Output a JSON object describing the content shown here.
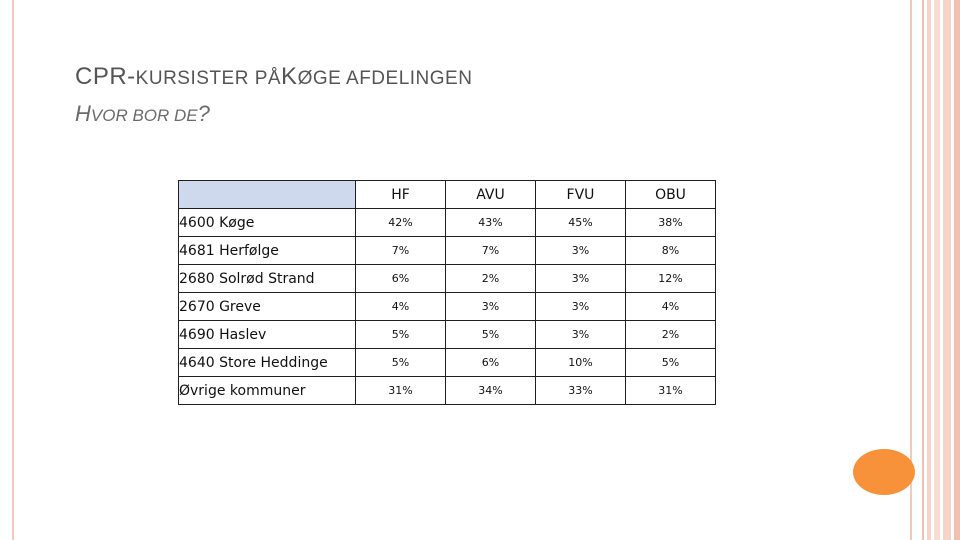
{
  "slide": {
    "title_prefix": "CPR-",
    "title_k": "KURSISTER PÅ",
    "title_koge_k": "K",
    "title_rest": "ØGE AFDELINGEN",
    "subtitle_h": "H",
    "subtitle_rest": "VOR BOR DE",
    "subtitle_q": "?"
  },
  "table": {
    "columns": [
      "HF",
      "AVU",
      "FVU",
      "OBU"
    ],
    "rows": [
      {
        "label": "4600 Køge",
        "values": [
          "42%",
          "43%",
          "45%",
          "38%"
        ]
      },
      {
        "label": "4681 Herfølge",
        "values": [
          "7%",
          "7%",
          "3%",
          "8%"
        ]
      },
      {
        "label": "2680 Solrød Strand",
        "values": [
          "6%",
          "2%",
          "3%",
          "12%"
        ]
      },
      {
        "label": "2670 Greve",
        "values": [
          "4%",
          "3%",
          "3%",
          "4%"
        ]
      },
      {
        "label": "4690 Haslev",
        "values": [
          "5%",
          "5%",
          "3%",
          "2%"
        ]
      },
      {
        "label": "4640 Store Heddinge",
        "values": [
          "5%",
          "6%",
          "10%",
          "5%"
        ]
      },
      {
        "label": "Øvrige kommuner",
        "values": [
          "31%",
          "34%",
          "33%",
          "31%"
        ]
      }
    ]
  },
  "colors": {
    "header_fill": "#cfd9ee",
    "accent_orange": "#f7923a",
    "frame_pink": "#f2c9bd"
  }
}
